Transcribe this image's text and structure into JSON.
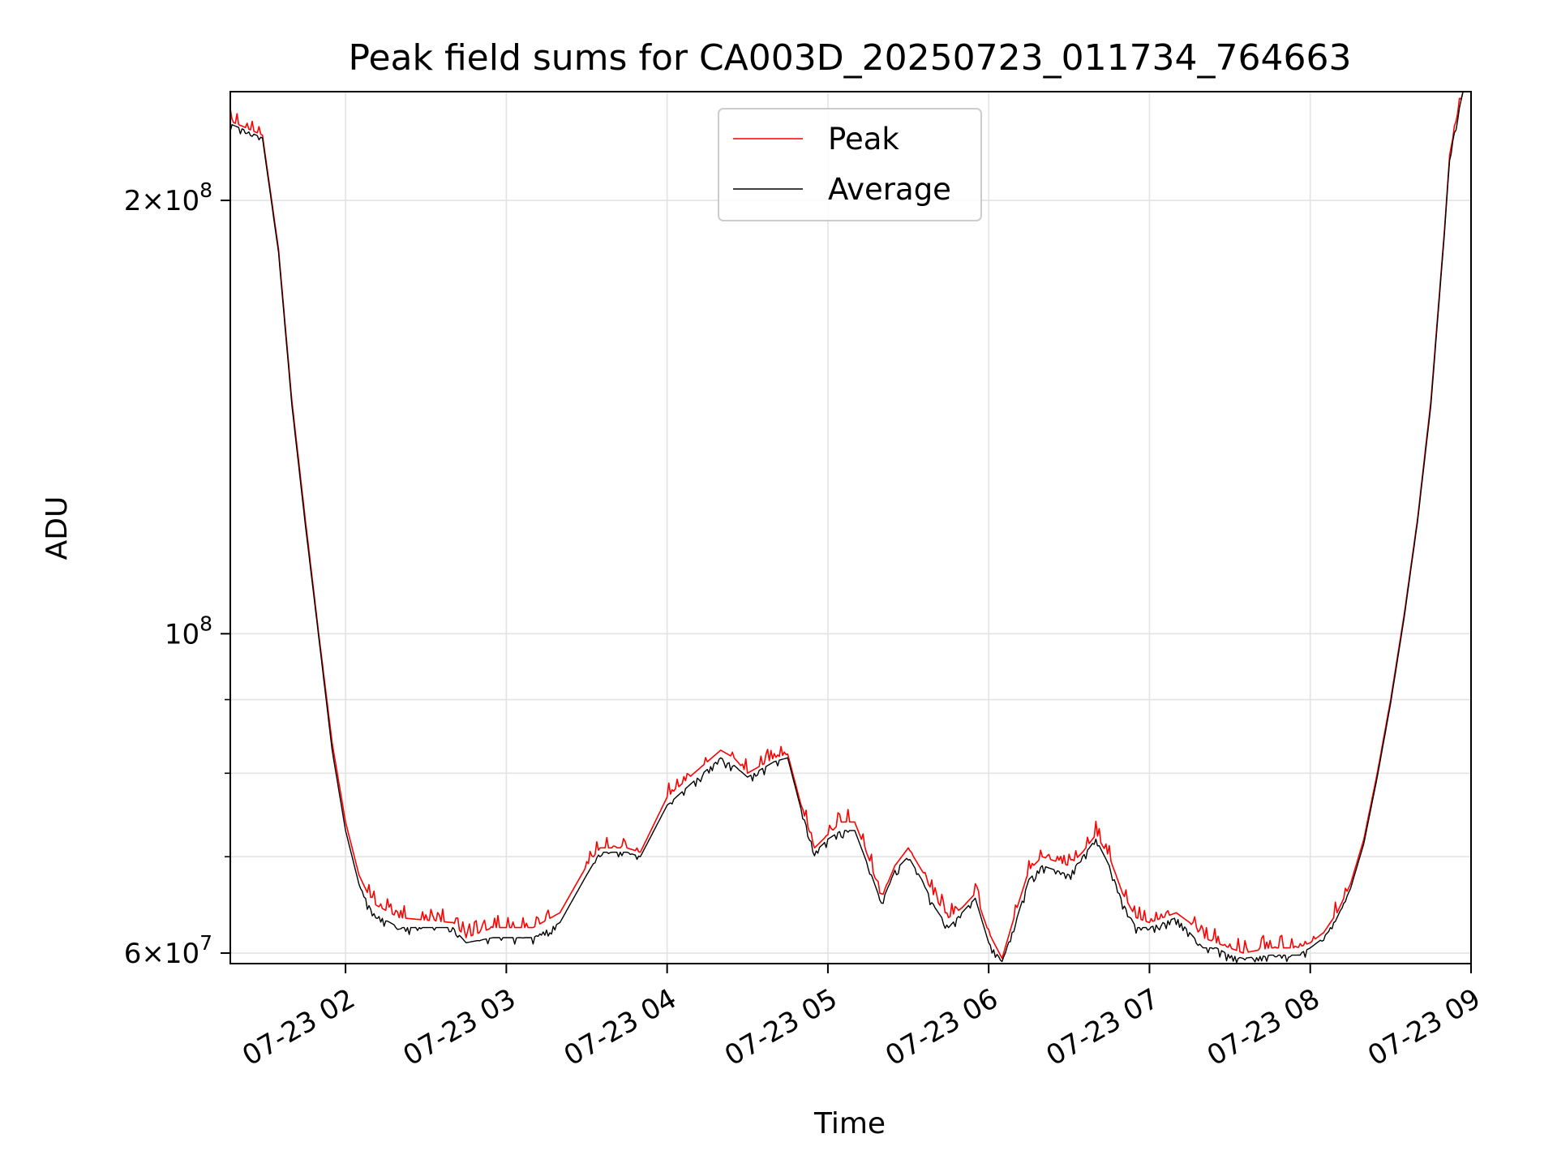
{
  "chart_data": {
    "type": "line",
    "title": "Peak field sums for CA003D_20250723_011734_764663",
    "xlabel": "Time",
    "ylabel": "ADU",
    "y_scale": "log",
    "x_range": [
      "07-23 01:17",
      "07-23 09:00"
    ],
    "ylim": [
      59000000,
      238000000
    ],
    "grid": true,
    "legend_position": "upper-center",
    "x_ticks": [
      "07-23 02",
      "07-23 03",
      "07-23 04",
      "07-23 05",
      "07-23 06",
      "07-23 07",
      "07-23 08",
      "07-23 09"
    ],
    "y_major_ticks": [
      {
        "value": 60000000,
        "label_mantissa": "6",
        "label_exp": "7"
      },
      {
        "value": 100000000,
        "label_mantissa": "",
        "label_exp": "8"
      },
      {
        "value": 200000000,
        "label_mantissa": "2",
        "label_exp": "8"
      }
    ],
    "y_minor_ticks": [
      70000000,
      80000000,
      90000000
    ],
    "series": [
      {
        "name": "Peak",
        "color": "#ff0000",
        "noise": 0.022,
        "points": [
          [
            "07-23 01:17",
            227000000
          ],
          [
            "07-23 01:22",
            225000000
          ],
          [
            "07-23 01:29",
            222000000
          ],
          [
            "07-23 01:35",
            185000000
          ],
          [
            "07-23 01:40",
            145000000
          ],
          [
            "07-23 01:45",
            120000000
          ],
          [
            "07-23 01:50",
            100000000
          ],
          [
            "07-23 01:55",
            84000000
          ],
          [
            "07-23 02:00",
            74000000
          ],
          [
            "07-23 02:05",
            68000000
          ],
          [
            "07-23 02:10",
            65000000
          ],
          [
            "07-23 02:20",
            63500000
          ],
          [
            "07-23 02:40",
            63000000
          ],
          [
            "07-23 02:45",
            61500000
          ],
          [
            "07-23 02:55",
            62500000
          ],
          [
            "07-23 03:10",
            62500000
          ],
          [
            "07-23 03:20",
            64000000
          ],
          [
            "07-23 03:30",
            69000000
          ],
          [
            "07-23 03:35",
            71000000
          ],
          [
            "07-23 03:45",
            71000000
          ],
          [
            "07-23 03:50",
            70500000
          ],
          [
            "07-23 04:00",
            77000000
          ],
          [
            "07-23 04:10",
            80000000
          ],
          [
            "07-23 04:20",
            83000000
          ],
          [
            "07-23 04:25",
            82000000
          ],
          [
            "07-23 04:30",
            80000000
          ],
          [
            "07-23 04:40",
            82000000
          ],
          [
            "07-23 04:45",
            82500000
          ],
          [
            "07-23 04:50",
            76000000
          ],
          [
            "07-23 04:55",
            71000000
          ],
          [
            "07-23 05:00",
            72500000
          ],
          [
            "07-23 05:05",
            74000000
          ],
          [
            "07-23 05:10",
            74000000
          ],
          [
            "07-23 05:15",
            70000000
          ],
          [
            "07-23 05:20",
            65500000
          ],
          [
            "07-23 05:25",
            69000000
          ],
          [
            "07-23 05:30",
            71000000
          ],
          [
            "07-23 05:35",
            68500000
          ],
          [
            "07-23 05:40",
            65500000
          ],
          [
            "07-23 05:45",
            63500000
          ],
          [
            "07-23 05:50",
            64500000
          ],
          [
            "07-23 05:55",
            66000000
          ],
          [
            "07-23 06:00",
            62000000
          ],
          [
            "07-23 06:05",
            59500000
          ],
          [
            "07-23 06:10",
            64000000
          ],
          [
            "07-23 06:15",
            68500000
          ],
          [
            "07-23 06:20",
            70000000
          ],
          [
            "07-23 06:25",
            69500000
          ],
          [
            "07-23 06:30",
            69000000
          ],
          [
            "07-23 06:35",
            70500000
          ],
          [
            "07-23 06:40",
            72500000
          ],
          [
            "07-23 06:45",
            70000000
          ],
          [
            "07-23 06:50",
            66000000
          ],
          [
            "07-23 06:55",
            63500000
          ],
          [
            "07-23 07:00",
            63000000
          ],
          [
            "07-23 07:05",
            63500000
          ],
          [
            "07-23 07:10",
            64000000
          ],
          [
            "07-23 07:15",
            63000000
          ],
          [
            "07-23 07:20",
            61500000
          ],
          [
            "07-23 07:25",
            61000000
          ],
          [
            "07-23 07:30",
            60500000
          ],
          [
            "07-23 07:35",
            60000000
          ],
          [
            "07-23 07:45",
            60500000
          ],
          [
            "07-23 07:55",
            60500000
          ],
          [
            "07-23 08:00",
            61000000
          ],
          [
            "07-23 08:05",
            62000000
          ],
          [
            "07-23 08:10",
            64000000
          ],
          [
            "07-23 08:15",
            67000000
          ],
          [
            "07-23 08:20",
            72000000
          ],
          [
            "07-23 08:25",
            80000000
          ],
          [
            "07-23 08:30",
            90000000
          ],
          [
            "07-23 08:35",
            103000000
          ],
          [
            "07-23 08:40",
            120000000
          ],
          [
            "07-23 08:45",
            145000000
          ],
          [
            "07-23 08:50",
            190000000
          ],
          [
            "07-23 08:52",
            215000000
          ],
          [
            "07-23 08:55",
            230000000
          ],
          [
            "07-23 08:57",
            238000000
          ]
        ]
      },
      {
        "name": "Average",
        "color": "#000000",
        "noise": 0.012,
        "points": [
          [
            "07-23 01:17",
            226000000
          ],
          [
            "07-23 01:22",
            224000000
          ],
          [
            "07-23 01:29",
            221000000
          ],
          [
            "07-23 01:35",
            184000000
          ],
          [
            "07-23 01:40",
            144000000
          ],
          [
            "07-23 01:45",
            119000000
          ],
          [
            "07-23 01:50",
            99500000
          ],
          [
            "07-23 01:55",
            83000000
          ],
          [
            "07-23 02:00",
            73000000
          ],
          [
            "07-23 02:05",
            67000000
          ],
          [
            "07-23 02:10",
            64000000
          ],
          [
            "07-23 02:20",
            62500000
          ],
          [
            "07-23 02:40",
            62500000
          ],
          [
            "07-23 02:45",
            61000000
          ],
          [
            "07-23 02:55",
            61500000
          ],
          [
            "07-23 03:10",
            61500000
          ],
          [
            "07-23 03:20",
            63000000
          ],
          [
            "07-23 03:30",
            68000000
          ],
          [
            "07-23 03:35",
            70500000
          ],
          [
            "07-23 03:45",
            70500000
          ],
          [
            "07-23 03:50",
            70000000
          ],
          [
            "07-23 04:00",
            76000000
          ],
          [
            "07-23 04:10",
            79000000
          ],
          [
            "07-23 04:20",
            82000000
          ],
          [
            "07-23 04:25",
            81000000
          ],
          [
            "07-23 04:30",
            79500000
          ],
          [
            "07-23 04:40",
            81500000
          ],
          [
            "07-23 04:45",
            82000000
          ],
          [
            "07-23 04:50",
            75500000
          ],
          [
            "07-23 04:55",
            70500000
          ],
          [
            "07-23 05:00",
            72000000
          ],
          [
            "07-23 05:05",
            73000000
          ],
          [
            "07-23 05:10",
            73000000
          ],
          [
            "07-23 05:15",
            69000000
          ],
          [
            "07-23 05:20",
            65000000
          ],
          [
            "07-23 05:25",
            68500000
          ],
          [
            "07-23 05:30",
            70000000
          ],
          [
            "07-23 05:35",
            67500000
          ],
          [
            "07-23 05:40",
            64500000
          ],
          [
            "07-23 05:45",
            62500000
          ],
          [
            "07-23 05:50",
            64000000
          ],
          [
            "07-23 05:55",
            65500000
          ],
          [
            "07-23 06:00",
            61000000
          ],
          [
            "07-23 06:05",
            59200000
          ],
          [
            "07-23 06:10",
            63000000
          ],
          [
            "07-23 06:15",
            67500000
          ],
          [
            "07-23 06:20",
            69000000
          ],
          [
            "07-23 06:25",
            68500000
          ],
          [
            "07-23 06:30",
            68000000
          ],
          [
            "07-23 06:35",
            70000000
          ],
          [
            "07-23 06:40",
            72000000
          ],
          [
            "07-23 06:45",
            69000000
          ],
          [
            "07-23 06:50",
            65000000
          ],
          [
            "07-23 06:55",
            62500000
          ],
          [
            "07-23 07:00",
            62500000
          ],
          [
            "07-23 07:05",
            63000000
          ],
          [
            "07-23 07:10",
            63500000
          ],
          [
            "07-23 07:15",
            62000000
          ],
          [
            "07-23 07:20",
            60500000
          ],
          [
            "07-23 07:25",
            60500000
          ],
          [
            "07-23 07:30",
            59800000
          ],
          [
            "07-23 07:35",
            59500000
          ],
          [
            "07-23 07:45",
            59800000
          ],
          [
            "07-23 07:55",
            59800000
          ],
          [
            "07-23 08:00",
            60500000
          ],
          [
            "07-23 08:05",
            61500000
          ],
          [
            "07-23 08:10",
            63500000
          ],
          [
            "07-23 08:15",
            66500000
          ],
          [
            "07-23 08:20",
            71500000
          ],
          [
            "07-23 08:25",
            79500000
          ],
          [
            "07-23 08:30",
            89500000
          ],
          [
            "07-23 08:35",
            102500000
          ],
          [
            "07-23 08:40",
            119500000
          ],
          [
            "07-23 08:45",
            144000000
          ],
          [
            "07-23 08:50",
            189000000
          ],
          [
            "07-23 08:52",
            214000000
          ],
          [
            "07-23 08:55",
            229000000
          ],
          [
            "07-23 08:57",
            238000000
          ]
        ]
      }
    ]
  }
}
